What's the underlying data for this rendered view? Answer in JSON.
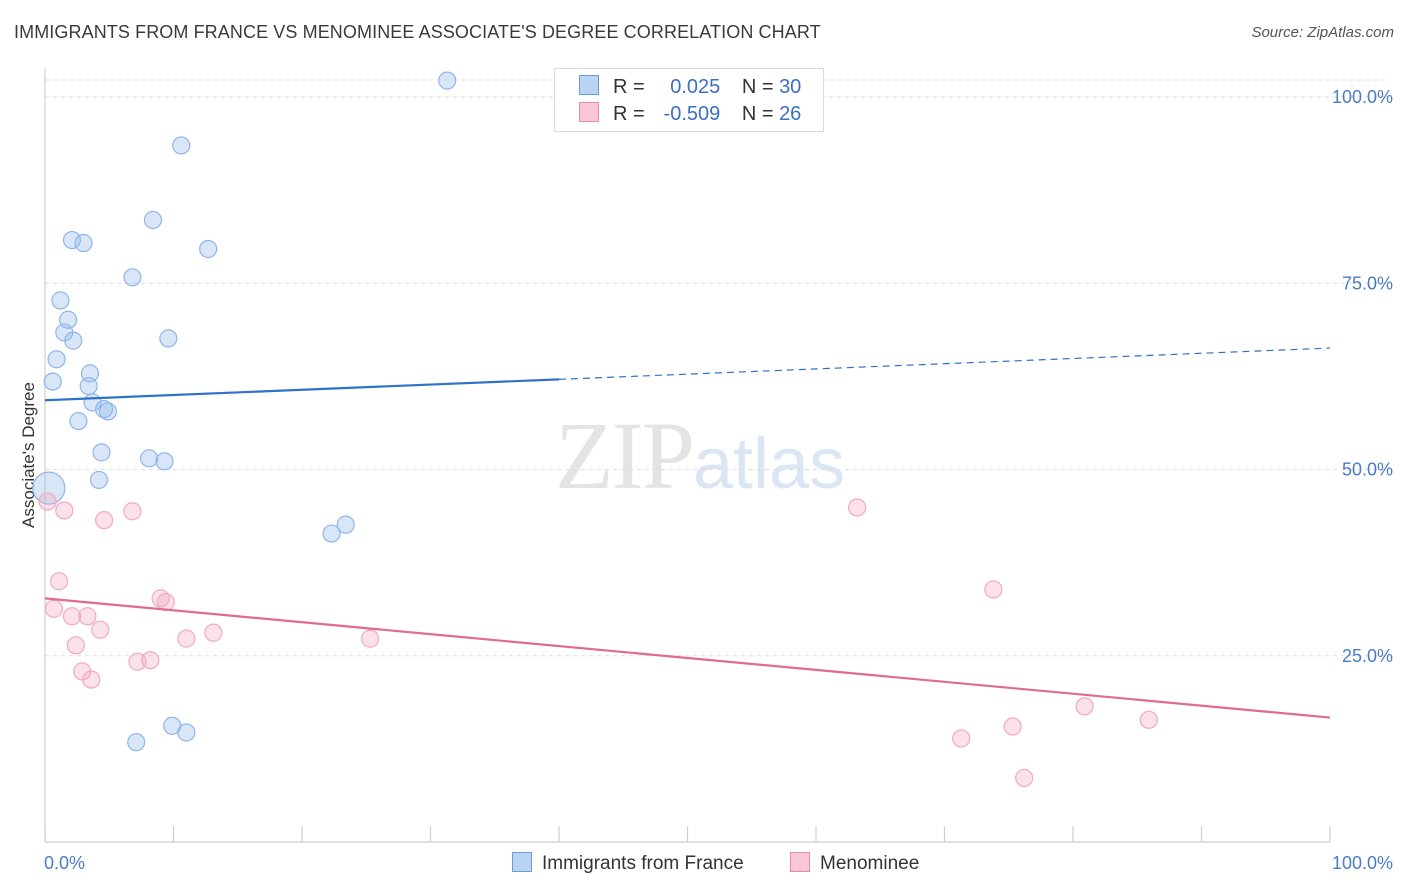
{
  "title": "IMMIGRANTS FROM FRANCE VS MENOMINEE ASSOCIATE'S DEGREE CORRELATION CHART",
  "source": "Source: ZipAtlas.com",
  "watermark": {
    "zip": "ZIP",
    "atlas": "atlas"
  },
  "legend": {
    "rows": [
      {
        "r_label": "R =",
        "r_value": "0.025",
        "n_label": "N =",
        "n_value": "30",
        "color": "#b8d3f3",
        "border": "#6f9ad8"
      },
      {
        "r_label": "R =",
        "r_value": "-0.509",
        "n_label": "N =",
        "n_value": "26",
        "color": "#f9c7d6",
        "border": "#e58aa8"
      }
    ]
  },
  "bottom_legend": {
    "series1": "Immigrants from France",
    "series2": "Menominee"
  },
  "chart_data": {
    "type": "scatter",
    "title": "IMMIGRANTS FROM FRANCE VS MENOMINEE ASSOCIATE'S DEGREE CORRELATION CHART",
    "xlabel": "",
    "ylabel": "Associate's Degree",
    "xlim": [
      0,
      100
    ],
    "ylim": [
      0,
      100
    ],
    "x_tick_labels": [
      "0.0%",
      "100.0%"
    ],
    "y_ticks": [
      25,
      50,
      75,
      100
    ],
    "y_tick_labels": [
      "25.0%",
      "50.0%",
      "75.0%",
      "100.0%"
    ],
    "series": [
      {
        "name": "Immigrants from France",
        "color": "#8fb6ea",
        "line_color": "#2f72c9",
        "trend": {
          "x0": 0,
          "y0": 59.3,
          "x1": 40,
          "y1": 62.1,
          "x_end": 100,
          "y_end": 66.3
        },
        "points": [
          [
            31.3,
            102.2
          ],
          [
            10.6,
            93.5
          ],
          [
            8.4,
            83.5
          ],
          [
            2.1,
            80.8
          ],
          [
            3.0,
            80.4
          ],
          [
            12.7,
            79.6
          ],
          [
            6.8,
            75.8
          ],
          [
            1.2,
            72.7
          ],
          [
            1.8,
            70.1
          ],
          [
            1.5,
            68.4
          ],
          [
            2.2,
            67.3
          ],
          [
            9.6,
            67.6
          ],
          [
            0.9,
            64.8
          ],
          [
            3.5,
            62.9
          ],
          [
            0.6,
            61.8
          ],
          [
            3.4,
            61.2
          ],
          [
            3.7,
            59.0
          ],
          [
            4.6,
            58.1
          ],
          [
            4.9,
            57.8
          ],
          [
            2.6,
            56.5
          ],
          [
            4.4,
            52.3
          ],
          [
            8.1,
            51.5
          ],
          [
            9.3,
            51.1
          ],
          [
            4.2,
            48.6
          ],
          [
            0.3,
            47.5
          ],
          [
            23.4,
            42.6
          ],
          [
            22.3,
            41.4
          ],
          [
            7.1,
            13.4
          ],
          [
            9.9,
            15.6
          ],
          [
            11.0,
            14.7
          ]
        ]
      },
      {
        "name": "Menominee",
        "color": "#f3a9c0",
        "line_color": "#e06a92",
        "trend": {
          "x0": 0,
          "y0": 32.7,
          "x1": 100,
          "y1": 16.7
        },
        "points": [
          [
            0.2,
            45.7
          ],
          [
            1.5,
            44.5
          ],
          [
            6.8,
            44.4
          ],
          [
            4.6,
            43.2
          ],
          [
            63.2,
            44.9
          ],
          [
            1.1,
            35.0
          ],
          [
            73.8,
            33.9
          ],
          [
            9.4,
            32.2
          ],
          [
            9.0,
            32.7
          ],
          [
            0.7,
            31.3
          ],
          [
            2.1,
            30.3
          ],
          [
            3.3,
            30.3
          ],
          [
            4.3,
            28.5
          ],
          [
            13.1,
            28.1
          ],
          [
            11.0,
            27.3
          ],
          [
            25.3,
            27.3
          ],
          [
            2.4,
            26.4
          ],
          [
            7.2,
            24.2
          ],
          [
            8.2,
            24.4
          ],
          [
            2.9,
            22.9
          ],
          [
            3.6,
            21.8
          ],
          [
            80.9,
            18.2
          ],
          [
            85.9,
            16.4
          ],
          [
            75.3,
            15.5
          ],
          [
            71.3,
            13.9
          ],
          [
            76.2,
            8.6
          ]
        ]
      }
    ]
  }
}
